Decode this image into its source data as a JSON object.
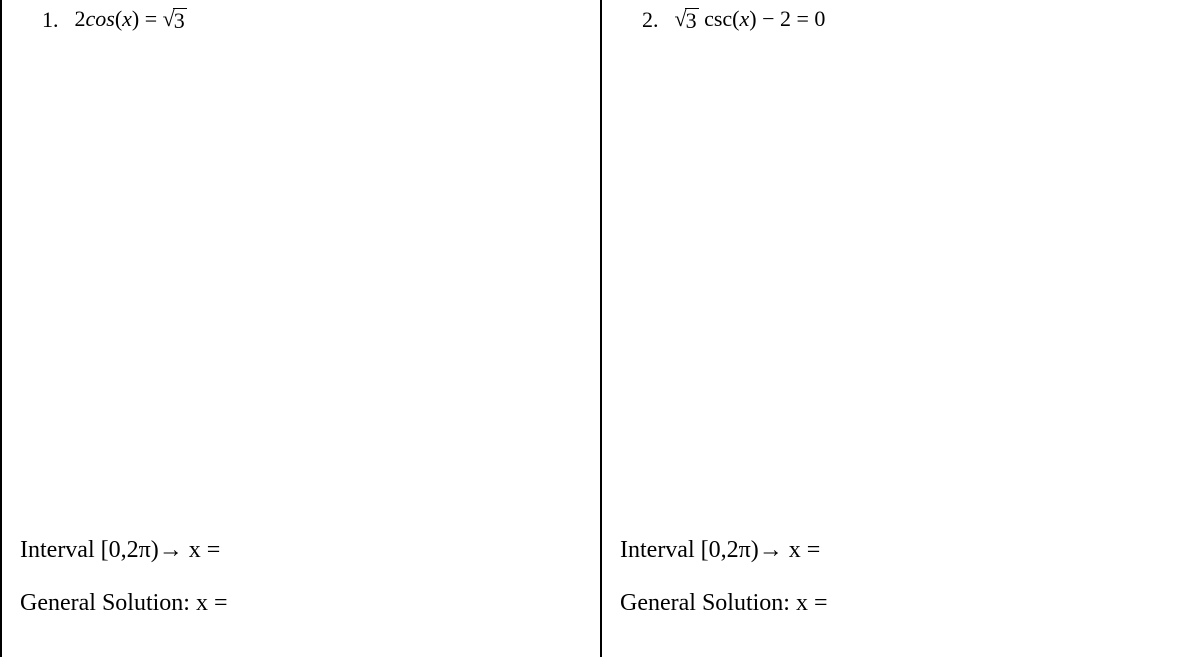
{
  "problems": [
    {
      "number": "1.",
      "equation_html": "2<span class='it'>cos</span>(<span class='it'>x</span>) = <span class='sqrt'><span class='radical'>√</span><span class='radicand'>3</span></span>",
      "interval_label": "Interval [0,2π)→ <span class='it'>x</span> =",
      "general_label": "General Solution: <span class='it'>x</span> ="
    },
    {
      "number": "2.",
      "equation_html": "<span class='sqrt'><span class='radical'>√</span><span class='radicand'>3</span></span> csc(<span class='it'>x</span>) − 2 = 0",
      "interval_label": "Interval [0,2π)→ <span class='it'>x</span> =",
      "general_label": "General Solution: <span class='it'>x</span> ="
    }
  ]
}
